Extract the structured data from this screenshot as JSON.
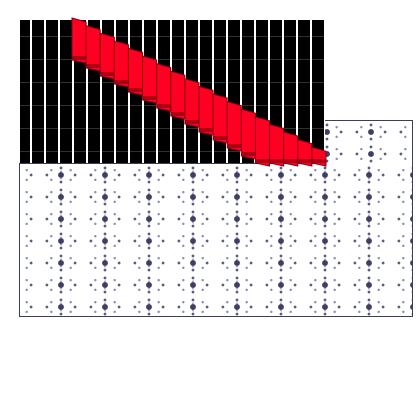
{
  "scene": {
    "colors": {
      "background": "#ffffff",
      "step_fill": "#ff0022",
      "step_edge": "#8a0010",
      "dark_block": "#000000",
      "pattern_dot": "#3b4064",
      "panel_border": "#3b3f5c"
    },
    "staircase": {
      "step_count": 18
    }
  }
}
